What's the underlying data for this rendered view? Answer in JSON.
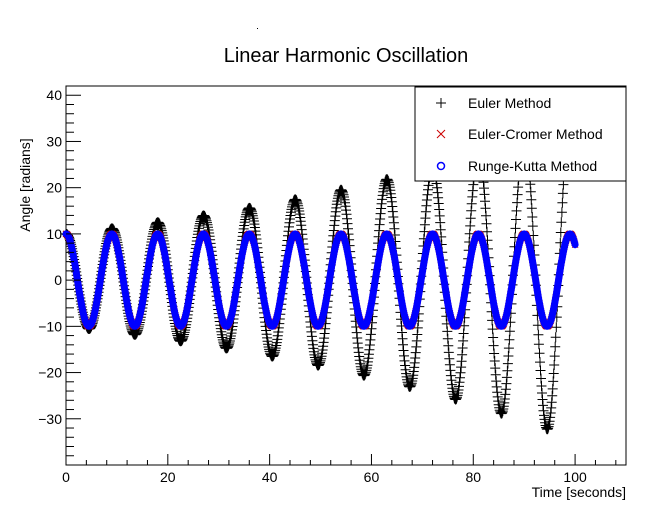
{
  "chart_data": {
    "type": "scatter",
    "title": "Linear Harmonic Oscillation",
    "xlabel": "Time [seconds]",
    "ylabel": "Angle [radians]",
    "xlim": [
      0,
      110
    ],
    "ylim": [
      -40,
      42
    ],
    "x_ticks": [
      0,
      20,
      40,
      60,
      80,
      100
    ],
    "x_tick_labels": [
      "0",
      "20",
      "40",
      "60",
      "80",
      "100"
    ],
    "y_ticks": [
      -30,
      -20,
      -10,
      0,
      10,
      20,
      30,
      40
    ],
    "y_tick_labels": [
      "−30",
      "−20",
      "−10",
      "0",
      "10",
      "20",
      "30",
      "40"
    ],
    "grid": false,
    "legend_position": "top-right",
    "series": [
      {
        "name": "Euler Method",
        "marker": "plus",
        "color": "#000000",
        "amplitude_start": 10,
        "growth_rate_per_second": 0.0124,
        "period_seconds": 9.0,
        "x_range": [
          0,
          100
        ],
        "sample_step": 0.1,
        "peaks": [
          {
            "t": 0,
            "y": 10
          },
          {
            "t": 9.0,
            "y": 11.2
          },
          {
            "t": 18.0,
            "y": 12.6
          },
          {
            "t": 27.0,
            "y": 14.0
          },
          {
            "t": 36.0,
            "y": 15.7
          },
          {
            "t": 45.0,
            "y": 17.5
          },
          {
            "t": 54.0,
            "y": 19.6
          },
          {
            "t": 63.0,
            "y": 22.0
          }
        ],
        "troughs": [
          {
            "t": 4.5,
            "y": -10.6
          },
          {
            "t": 13.5,
            "y": -11.9
          },
          {
            "t": 22.5,
            "y": -13.3
          },
          {
            "t": 31.5,
            "y": -14.9
          },
          {
            "t": 40.5,
            "y": -16.6
          },
          {
            "t": 49.5,
            "y": -18.6
          },
          {
            "t": 58.5,
            "y": -20.8
          },
          {
            "t": 67.5,
            "y": -23.2
          },
          {
            "t": 76.5,
            "y": -26.0
          },
          {
            "t": 85.5,
            "y": -29.0
          },
          {
            "t": 94.5,
            "y": -32.5
          }
        ]
      },
      {
        "name": "Euler-Cromer Method",
        "marker": "cross",
        "color": "#cc0000",
        "amplitude": 10,
        "period_seconds": 9.0,
        "x_range": [
          0,
          100
        ],
        "sample_step": 0.1
      },
      {
        "name": "Runge-Kutta Method",
        "marker": "circle",
        "color": "#0000ff",
        "amplitude": 10,
        "period_seconds": 9.0,
        "x_range": [
          0,
          100
        ],
        "sample_step": 0.1
      }
    ]
  }
}
